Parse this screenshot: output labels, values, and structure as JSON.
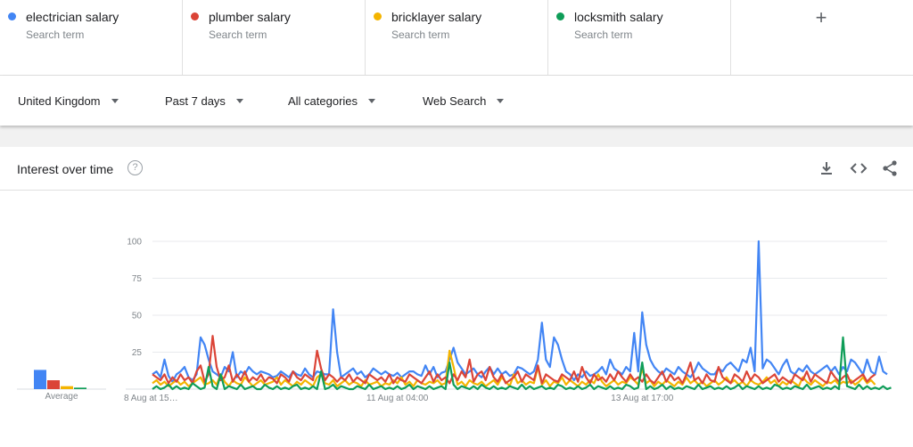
{
  "terms": [
    {
      "name": "electrician salary",
      "sub": "Search term",
      "color": "#4285f4"
    },
    {
      "name": "plumber salary",
      "sub": "Search term",
      "color": "#db4437"
    },
    {
      "name": "bricklayer salary",
      "sub": "Search term",
      "color": "#f4b400"
    },
    {
      "name": "locksmith salary",
      "sub": "Search term",
      "color": "#0f9d58"
    }
  ],
  "add_term_icon": "plus-icon",
  "filters": {
    "region": "United Kingdom",
    "time": "Past 7 days",
    "category": "All categories",
    "property": "Web Search"
  },
  "card": {
    "title": "Interest over time",
    "help": "?",
    "icons": [
      "download-icon",
      "embed-icon",
      "share-icon"
    ],
    "average_label": "Average"
  },
  "chart_data": {
    "type": "line",
    "title": "",
    "xlabel": "",
    "ylabel": "",
    "ylim": [
      0,
      100
    ],
    "yticks": [
      100,
      75,
      50,
      25
    ],
    "x_tick_labels": [
      "8 Aug at 15…",
      "11 Aug at 04:00",
      "13 Aug at 17:00"
    ],
    "x_tick_index": [
      0,
      61,
      122
    ],
    "averages": {
      "electrician salary": 13,
      "plumber salary": 6,
      "bricklayer salary": 2,
      "locksmith salary": 1
    },
    "series": [
      {
        "name": "electrician salary",
        "color": "#4285f4",
        "values": [
          10,
          12,
          8,
          20,
          9,
          5,
          10,
          12,
          15,
          8,
          6,
          10,
          35,
          30,
          20,
          12,
          10,
          8,
          15,
          12,
          25,
          8,
          12,
          10,
          15,
          12,
          10,
          12,
          11,
          10,
          8,
          9,
          12,
          10,
          8,
          12,
          10,
          9,
          14,
          10,
          8,
          12,
          11,
          10,
          10,
          54,
          25,
          8,
          10,
          12,
          14,
          10,
          12,
          8,
          10,
          14,
          12,
          10,
          12,
          10,
          9,
          11,
          8,
          10,
          12,
          12,
          10,
          9,
          16,
          10,
          15,
          8,
          11,
          12,
          20,
          28,
          18,
          14,
          10,
          12,
          14,
          10,
          8,
          12,
          15,
          10,
          14,
          10,
          12,
          9,
          10,
          15,
          14,
          12,
          10,
          12,
          20,
          45,
          20,
          15,
          35,
          30,
          20,
          12,
          10,
          6,
          10,
          8,
          12,
          9,
          10,
          12,
          15,
          10,
          20,
          14,
          12,
          10,
          15,
          12,
          38,
          12,
          52,
          30,
          20,
          15,
          12,
          10,
          14,
          12,
          10,
          15,
          12,
          10,
          8,
          12,
          18,
          14,
          12,
          10,
          10,
          14,
          12,
          16,
          18,
          15,
          12,
          20,
          18,
          28,
          12,
          100,
          14,
          20,
          18,
          14,
          10,
          16,
          20,
          12,
          10,
          14,
          12,
          16,
          12,
          10,
          12,
          14,
          16,
          12,
          15,
          10,
          15,
          12,
          20,
          18,
          14,
          10,
          20,
          12,
          10,
          22,
          12,
          10
        ]
      },
      {
        "name": "plumber salary",
        "color": "#db4437",
        "values": [
          10,
          8,
          6,
          10,
          4,
          8,
          5,
          10,
          6,
          8,
          4,
          12,
          16,
          5,
          10,
          36,
          15,
          6,
          8,
          16,
          5,
          10,
          6,
          12,
          5,
          8,
          6,
          10,
          5,
          8,
          7,
          4,
          10,
          8,
          5,
          12,
          8,
          6,
          10,
          8,
          6,
          26,
          14,
          6,
          10,
          8,
          5,
          8,
          6,
          10,
          5,
          8,
          6,
          4,
          10,
          8,
          6,
          8,
          5,
          10,
          4,
          8,
          6,
          5,
          10,
          8,
          6,
          4,
          8,
          12,
          5,
          10,
          6,
          8,
          4,
          10,
          6,
          12,
          8,
          20,
          5,
          10,
          12,
          6,
          15,
          8,
          5,
          10,
          4,
          6,
          8,
          12,
          5,
          10,
          8,
          6,
          16,
          4,
          10,
          8,
          6,
          5,
          10,
          8,
          6,
          12,
          5,
          15,
          8,
          4,
          10,
          6,
          8,
          5,
          10,
          6,
          12,
          8,
          5,
          10,
          6,
          8,
          5,
          10,
          6,
          4,
          8,
          12,
          5,
          10,
          6,
          8,
          4,
          10,
          18,
          6,
          8,
          4,
          10,
          6,
          5,
          15,
          8,
          6,
          4,
          10,
          8,
          5,
          12,
          6,
          10,
          8,
          4,
          6,
          8,
          10,
          5,
          8,
          6,
          4,
          10,
          8,
          6,
          12,
          5,
          10,
          8,
          6,
          4,
          12,
          8,
          5,
          8,
          10,
          4,
          6,
          8,
          10,
          5,
          8,
          10
        ]
      },
      {
        "name": "bricklayer salary",
        "color": "#f4b400",
        "values": [
          4,
          6,
          3,
          5,
          2,
          4,
          6,
          3,
          5,
          2,
          4,
          6,
          8,
          3,
          4,
          6,
          3,
          10,
          5,
          2,
          6,
          4,
          3,
          8,
          5,
          2,
          4,
          6,
          3,
          4,
          5,
          8,
          3,
          6,
          4,
          2,
          5,
          3,
          6,
          4,
          2,
          8,
          10,
          4,
          3,
          6,
          2,
          4,
          6,
          3,
          5,
          4,
          2,
          6,
          3,
          4,
          5,
          2,
          4,
          3,
          6,
          4,
          8,
          3,
          5,
          2,
          6,
          4,
          3,
          5,
          4,
          6,
          3,
          4,
          26,
          15,
          3,
          5,
          2,
          6,
          4,
          3,
          5,
          2,
          4,
          6,
          3,
          8,
          5,
          2,
          10,
          4,
          6,
          3,
          5,
          4,
          15,
          3,
          6,
          2,
          5,
          4,
          8,
          3,
          6,
          4,
          2,
          5,
          3,
          6,
          4,
          10,
          5,
          2,
          4,
          6,
          3,
          5,
          4,
          8,
          6,
          3,
          14,
          4,
          6,
          2,
          5,
          3,
          6,
          4,
          2,
          5,
          3,
          8,
          4,
          6,
          3,
          5,
          2,
          4,
          6,
          3,
          5,
          8,
          4,
          6,
          3,
          5,
          2,
          6,
          4,
          3,
          5,
          8,
          4,
          6,
          2,
          5,
          3,
          6,
          4,
          2,
          8,
          5,
          3,
          6,
          4,
          2,
          5,
          4,
          6,
          3,
          5,
          4,
          6,
          3,
          5,
          8,
          4,
          6,
          3
        ]
      },
      {
        "name": "locksmith salary",
        "color": "#0f9d58",
        "values": [
          0,
          2,
          0,
          1,
          3,
          0,
          2,
          0,
          1,
          0,
          4,
          2,
          0,
          1,
          15,
          2,
          0,
          10,
          0,
          2,
          1,
          0,
          3,
          0,
          1,
          2,
          0,
          0,
          3,
          1,
          0,
          2,
          0,
          1,
          0,
          2,
          3,
          0,
          1,
          0,
          2,
          0,
          12,
          0,
          1,
          3,
          0,
          2,
          1,
          0,
          0,
          2,
          1,
          0,
          3,
          0,
          1,
          2,
          0,
          1,
          0,
          2,
          0,
          1,
          3,
          0,
          2,
          1,
          0,
          2,
          0,
          1,
          2,
          0,
          18,
          3,
          0,
          2,
          1,
          0,
          2,
          0,
          3,
          1,
          0,
          2,
          0,
          1,
          0,
          2,
          1,
          0,
          3,
          0,
          2,
          0,
          1,
          2,
          0,
          1,
          0,
          3,
          2,
          0,
          1,
          0,
          2,
          0,
          1,
          3,
          0,
          2,
          1,
          0,
          2,
          0,
          1,
          0,
          3,
          2,
          0,
          1,
          18,
          0,
          2,
          0,
          1,
          3,
          0,
          2,
          0,
          1,
          0,
          2,
          1,
          0,
          3,
          0,
          1,
          2,
          0,
          1,
          0,
          2,
          0,
          1,
          3,
          0,
          2,
          1,
          0,
          2,
          0,
          1,
          0,
          3,
          2,
          0,
          1,
          0,
          2,
          1,
          0,
          3,
          0,
          1,
          2,
          0,
          1,
          0,
          2,
          0,
          35,
          2,
          1,
          0,
          3,
          0,
          2,
          0,
          1,
          0,
          2,
          0,
          1
        ]
      }
    ]
  }
}
